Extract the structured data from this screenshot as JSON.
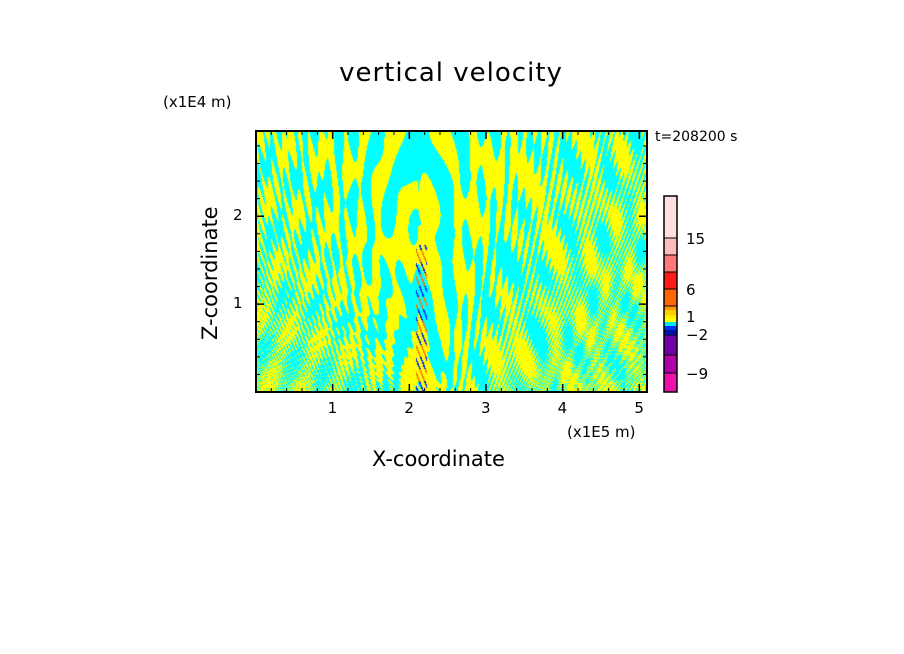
{
  "chart_data": {
    "type": "heatmap",
    "title": "vertical velocity",
    "xlabel": "X-coordinate",
    "ylabel": "Z-coordinate",
    "x_unit": "(x1E5 m)",
    "y_unit": "(x1E4 m)",
    "annotation": "t=208200 s",
    "xlim": [
      0,
      5.1
    ],
    "ylim": [
      0,
      2.97
    ],
    "x_ticks": [
      "1",
      "2",
      "3",
      "4",
      "5"
    ],
    "y_ticks": [
      "1",
      "2"
    ],
    "colorbar": {
      "labels": [
        {
          "text": "15",
          "level": 15
        },
        {
          "text": "6",
          "level": 6
        },
        {
          "text": "1",
          "level": 1
        },
        {
          "text": "−2",
          "level": -2
        },
        {
          "text": "−9",
          "level": -9
        }
      ],
      "bands": [
        {
          "color": "#ee10aa"
        },
        {
          "color": "#b000a8"
        },
        {
          "color": "#7000a8"
        },
        {
          "color": "#0010a0"
        },
        {
          "color": "#0030ff"
        },
        {
          "color": "#00e8ff"
        },
        {
          "color": "#ffff00"
        },
        {
          "color": "#ffee00"
        },
        {
          "color": "#ffcc00"
        },
        {
          "color": "#ff9900"
        },
        {
          "color": "#ff6600"
        },
        {
          "color": "#ff1a1a"
        },
        {
          "color": "#ff7777"
        },
        {
          "color": "#ffbbbb"
        },
        {
          "color": "#ffe0e0"
        }
      ]
    },
    "dominant_colors": {
      "positive_small": "#ffff00",
      "negative_small": "#00ffff"
    }
  }
}
